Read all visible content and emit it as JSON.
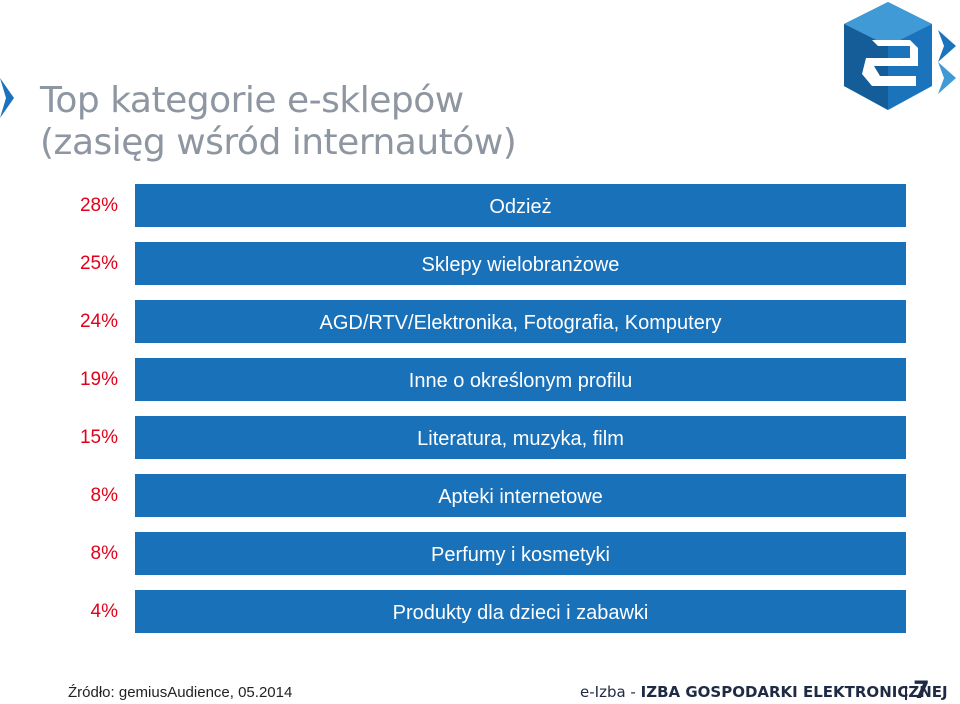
{
  "slide": {
    "title_line1": "Top kategorie e-sklepów",
    "title_line2": "(zasięg wśród internautów)"
  },
  "chart_data": {
    "type": "bar",
    "orientation": "horizontal",
    "categories": [
      "Odzież",
      "Sklepy wielobranżowe",
      "AGD/RTV/Elektronika, Fotografia, Komputery",
      "Inne o określonym profilu",
      "Literatura, muzyka, film",
      "Apteki internetowe",
      "Perfumy i kosmetyki",
      "Produkty dla dzieci i zabawki"
    ],
    "values": [
      28,
      25,
      24,
      19,
      15,
      8,
      8,
      4
    ],
    "value_labels": [
      "28%",
      "25%",
      "24%",
      "19%",
      "15%",
      "8%",
      "8%",
      "4%"
    ],
    "value_unit": "%",
    "bar_color": "#1871b9",
    "value_color": "#e2001a",
    "title": "Top kategorie e-sklepów (zasięg wśród internautów)",
    "grid": false,
    "legend": "none"
  },
  "footer": {
    "source": "Źródło: gemiusAudience, 05.2014",
    "brand_prefix": "e-Izba - ",
    "brand_org": "IZBA GOSPODARKI ELEKTRONICZNEJ",
    "page_number": "7"
  },
  "logo": {
    "icon": "e-izba-logo-icon",
    "color": "#1b74bb"
  }
}
